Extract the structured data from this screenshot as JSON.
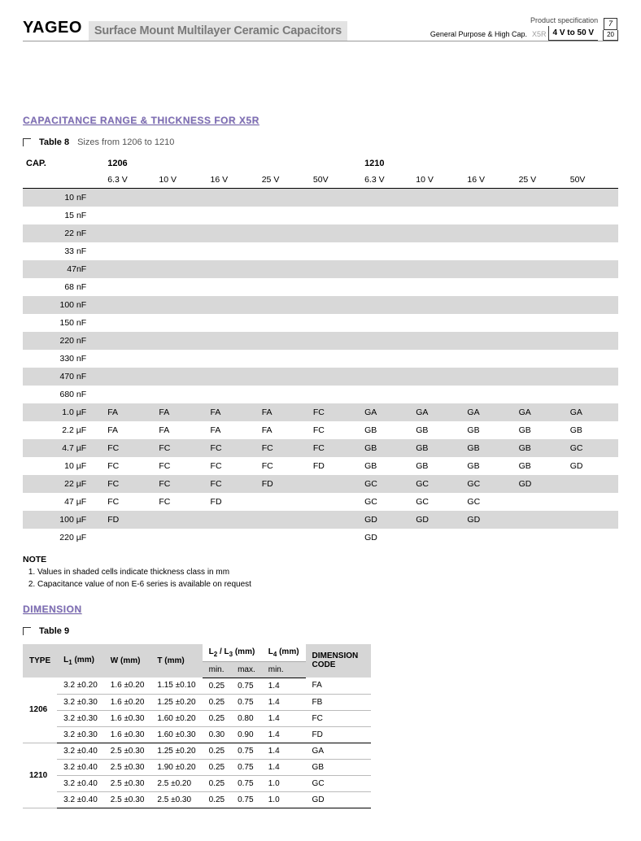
{
  "header": {
    "logo": "YAGEO",
    "title": "Surface Mount Multilayer Ceramic Capacitors",
    "gp_label": "General Purpose & High Cap.",
    "x5r_label": "X5R",
    "volt_label": "4 V to 50 V",
    "spec_label": "Product specification",
    "page_num": "7",
    "page_total": "20"
  },
  "section1": {
    "heading": "CAPACITANCE RANGE & THICKNESS FOR X5R",
    "table_num": "Table 8",
    "table_desc": "Sizes from 1206 to 1210",
    "cap_label": "CAP.",
    "size_groups": [
      "1206",
      "1210"
    ],
    "voltages": [
      "6.3 V",
      "10 V",
      "16 V",
      "25 V",
      "50V",
      "6.3 V",
      "10 V",
      "16 V",
      "25 V",
      "50V"
    ],
    "rows": [
      {
        "cap": "10 nF",
        "v": [
          "",
          "",
          "",
          "",
          "",
          "",
          "",
          "",
          "",
          ""
        ],
        "shade": true
      },
      {
        "cap": "15 nF",
        "v": [
          "",
          "",
          "",
          "",
          "",
          "",
          "",
          "",
          "",
          ""
        ],
        "shade": false
      },
      {
        "cap": "22 nF",
        "v": [
          "",
          "",
          "",
          "",
          "",
          "",
          "",
          "",
          "",
          ""
        ],
        "shade": true
      },
      {
        "cap": "33 nF",
        "v": [
          "",
          "",
          "",
          "",
          "",
          "",
          "",
          "",
          "",
          ""
        ],
        "shade": false
      },
      {
        "cap": "47nF",
        "v": [
          "",
          "",
          "",
          "",
          "",
          "",
          "",
          "",
          "",
          ""
        ],
        "shade": true
      },
      {
        "cap": "68 nF",
        "v": [
          "",
          "",
          "",
          "",
          "",
          "",
          "",
          "",
          "",
          ""
        ],
        "shade": false
      },
      {
        "cap": "100 nF",
        "v": [
          "",
          "",
          "",
          "",
          "",
          "",
          "",
          "",
          "",
          ""
        ],
        "shade": true
      },
      {
        "cap": "150 nF",
        "v": [
          "",
          "",
          "",
          "",
          "",
          "",
          "",
          "",
          "",
          ""
        ],
        "shade": false
      },
      {
        "cap": "220 nF",
        "v": [
          "",
          "",
          "",
          "",
          "",
          "",
          "",
          "",
          "",
          ""
        ],
        "shade": true
      },
      {
        "cap": "330 nF",
        "v": [
          "",
          "",
          "",
          "",
          "",
          "",
          "",
          "",
          "",
          ""
        ],
        "shade": false
      },
      {
        "cap": "470 nF",
        "v": [
          "",
          "",
          "",
          "",
          "",
          "",
          "",
          "",
          "",
          ""
        ],
        "shade": true
      },
      {
        "cap": "680 nF",
        "v": [
          "",
          "",
          "",
          "",
          "",
          "",
          "",
          "",
          "",
          ""
        ],
        "shade": false
      },
      {
        "cap": "1.0 µF",
        "v": [
          "FA",
          "FA",
          "FA",
          "FA",
          "FC",
          "GA",
          "GA",
          "GA",
          "GA",
          "GA"
        ],
        "shade": true
      },
      {
        "cap": "2.2 µF",
        "v": [
          "FA",
          "FA",
          "FA",
          "FA",
          "FC",
          "GB",
          "GB",
          "GB",
          "GB",
          "GB"
        ],
        "shade": false
      },
      {
        "cap": "4.7 µF",
        "v": [
          "FC",
          "FC",
          "FC",
          "FC",
          "FC",
          "GB",
          "GB",
          "GB",
          "GB",
          "GC"
        ],
        "shade": true
      },
      {
        "cap": "10 µF",
        "v": [
          "FC",
          "FC",
          "FC",
          "FC",
          "FD",
          "GB",
          "GB",
          "GB",
          "GB",
          "GD"
        ],
        "shade": false
      },
      {
        "cap": "22 µF",
        "v": [
          "FC",
          "FC",
          "FC",
          "FD",
          "",
          "GC",
          "GC",
          "GC",
          "GD",
          ""
        ],
        "shade": true
      },
      {
        "cap": "47 µF",
        "v": [
          "FC",
          "FC",
          "FD",
          "",
          "",
          "GC",
          "GC",
          "GC",
          "",
          ""
        ],
        "shade": false
      },
      {
        "cap": "100 µF",
        "v": [
          "FD",
          "",
          "",
          "",
          "",
          "GD",
          "GD",
          "GD",
          "",
          ""
        ],
        "shade": true
      },
      {
        "cap": "220 µF",
        "v": [
          "",
          "",
          "",
          "",
          "",
          "GD",
          "",
          "",
          "",
          ""
        ],
        "shade": false
      }
    ],
    "notes_h": "NOTE",
    "notes": [
      "Values in shaded cells indicate thickness class in mm",
      "Capacitance value of non E-6 series is available on request"
    ]
  },
  "section2": {
    "heading": "DIMENSION",
    "table_num": "Table 9",
    "col_type": "TYPE",
    "col_l1": "L₁ (mm)",
    "col_w": "W (mm)",
    "col_t": "T (mm)",
    "col_l23": "L₂ / L₃ (mm)",
    "col_l4": "L₄ (mm)",
    "col_dim": "DIMENSION CODE",
    "sub_min": "min.",
    "sub_max": "max.",
    "groups": [
      {
        "type": "1206",
        "rows": [
          {
            "l1": "3.2 ±0.20",
            "w": "1.6 ±0.20",
            "t": "1.15 ±0.10",
            "min": "0.25",
            "max": "0.75",
            "l4": "1.4",
            "code": "FA"
          },
          {
            "l1": "3.2 ±0.30",
            "w": "1.6 ±0.20",
            "t": "1.25 ±0.20",
            "min": "0.25",
            "max": "0.75",
            "l4": "1.4",
            "code": "FB"
          },
          {
            "l1": "3.2 ±0.30",
            "w": "1.6 ±0.30",
            "t": "1.60 ±0.20",
            "min": "0.25",
            "max": "0.80",
            "l4": "1.4",
            "code": "FC"
          },
          {
            "l1": "3.2 ±0.30",
            "w": "1.6 ±0.30",
            "t": "1.60 ±0.30",
            "min": "0.30",
            "max": "0.90",
            "l4": "1.4",
            "code": "FD"
          }
        ]
      },
      {
        "type": "1210",
        "rows": [
          {
            "l1": "3.2 ±0.40",
            "w": "2.5 ±0.30",
            "t": "1.25 ±0.20",
            "min": "0.25",
            "max": "0.75",
            "l4": "1.4",
            "code": "GA"
          },
          {
            "l1": "3.2 ±0.40",
            "w": "2.5 ±0.30",
            "t": "1.90 ±0.20",
            "min": "0.25",
            "max": "0.75",
            "l4": "1.4",
            "code": "GB"
          },
          {
            "l1": "3.2 ±0.40",
            "w": "2.5 ±0.30",
            "t": "2.5 ±0.20",
            "min": "0.25",
            "max": "0.75",
            "l4": "1.0",
            "code": "GC"
          },
          {
            "l1": "3.2 ±0.40",
            "w": "2.5 ±0.30",
            "t": "2.5 ±0.30",
            "min": "0.25",
            "max": "0.75",
            "l4": "1.0",
            "code": "GD"
          }
        ]
      }
    ]
  }
}
